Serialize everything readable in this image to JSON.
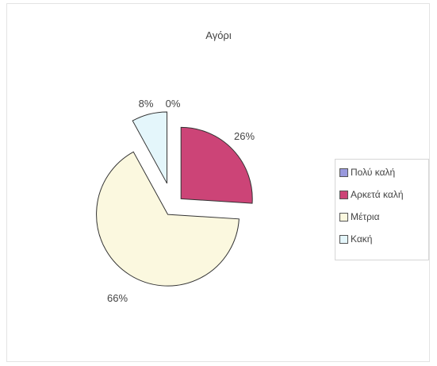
{
  "chart_data": {
    "type": "pie",
    "title": "Αγόρι",
    "categories": [
      "Πολύ καλή",
      "Αρκετά καλή",
      "Μέτρια",
      "Κακή"
    ],
    "values": [
      0,
      26,
      66,
      8
    ],
    "labels": [
      "0%",
      "26%",
      "66%",
      "8%"
    ],
    "colors": [
      "#9999dd",
      "#cc4477",
      "#fbf8df",
      "#e4f6fb"
    ],
    "exploded": true,
    "legend_position": "right"
  }
}
